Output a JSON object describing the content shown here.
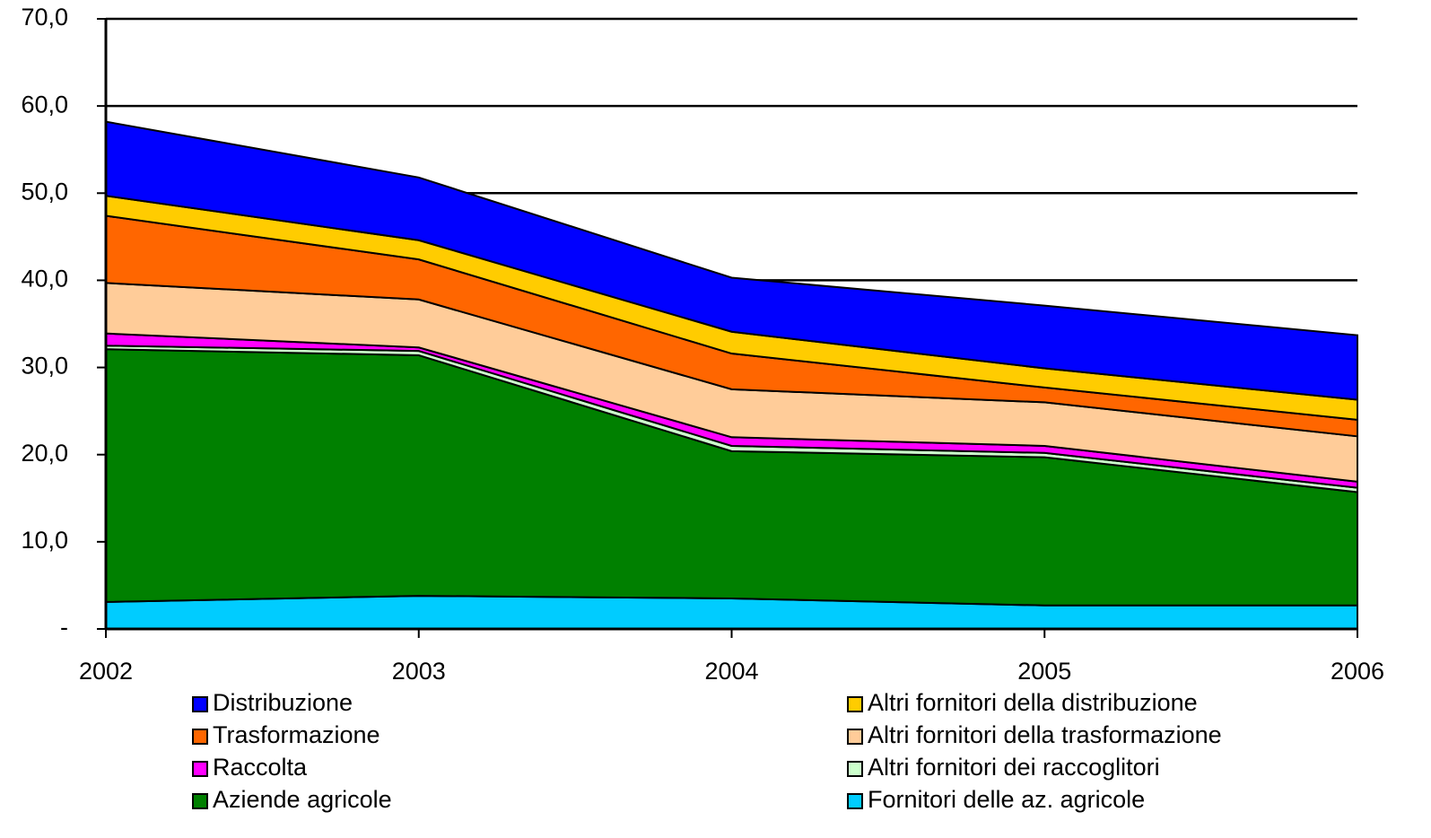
{
  "chart_data": {
    "type": "stacked-area",
    "x": [
      "2002",
      "2003",
      "2004",
      "2005",
      "2006"
    ],
    "ylim": [
      0,
      70
    ],
    "yticks": [
      {
        "value": 0,
        "label": "-"
      },
      {
        "value": 10,
        "label": "10,0"
      },
      {
        "value": 20,
        "label": "20,0"
      },
      {
        "value": 30,
        "label": "30,0"
      },
      {
        "value": 40,
        "label": "40,0"
      },
      {
        "value": 50,
        "label": "50,0"
      },
      {
        "value": 60,
        "label": "60,0"
      },
      {
        "value": 70,
        "label": "70,0"
      }
    ],
    "grid": true,
    "series": [
      {
        "name": "Fornitori delle az. agricole",
        "color": "#00ccff",
        "values": [
          3.1,
          3.8,
          3.5,
          2.7,
          2.7
        ]
      },
      {
        "name": "Aziende agricole",
        "color": "#008000",
        "values": [
          29.0,
          27.6,
          16.9,
          17.0,
          13.0
        ]
      },
      {
        "name": "Altri fornitori dei raccoglitori",
        "color": "#ccffcc",
        "values": [
          0.4,
          0.5,
          0.6,
          0.5,
          0.5
        ]
      },
      {
        "name": "Raccolta",
        "color": "#ff00ff",
        "values": [
          1.4,
          0.4,
          1.0,
          0.8,
          0.7
        ]
      },
      {
        "name": "Altri fornitori della trasformazione",
        "color": "#ffcc99",
        "values": [
          5.8,
          5.5,
          5.5,
          5.0,
          5.2
        ]
      },
      {
        "name": "Trasformazione",
        "color": "#ff6600",
        "values": [
          7.7,
          4.6,
          4.1,
          1.7,
          1.9
        ]
      },
      {
        "name": "Altri fornitori della distribuzione",
        "color": "#ffcc00",
        "values": [
          2.3,
          2.2,
          2.5,
          2.2,
          2.3
        ]
      },
      {
        "name": "Distribuzione",
        "color": "#0000ff",
        "values": [
          8.5,
          7.2,
          6.2,
          7.2,
          7.4
        ]
      }
    ]
  }
}
